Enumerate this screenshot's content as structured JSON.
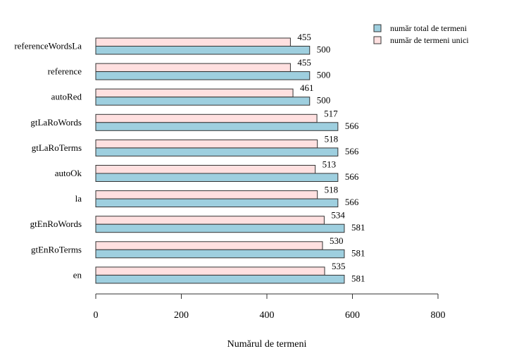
{
  "colors": {
    "total": "#9ecfdf",
    "unique": "#ffe0e0",
    "stroke": "#333333"
  },
  "chart_data": {
    "type": "bar",
    "orientation": "horizontal",
    "xlabel": "Numărul de termeni",
    "xlim": [
      0,
      800
    ],
    "xticks": [
      0,
      200,
      400,
      600,
      800
    ],
    "grid": false,
    "legend_position": "top-right",
    "categories": [
      "referenceWordsLa",
      "reference",
      "autoRed",
      "gtLaRoWords",
      "gtLaRoTerms",
      "autoOk",
      "la",
      "gtEnRoWords",
      "gtEnRoTerms",
      "en"
    ],
    "series": [
      {
        "name": "număr total de termeni",
        "values": [
          500,
          500,
          500,
          566,
          566,
          566,
          566,
          581,
          581,
          581
        ]
      },
      {
        "name": "număr de termeni unici",
        "values": [
          455,
          455,
          461,
          517,
          518,
          513,
          518,
          534,
          530,
          535
        ]
      }
    ]
  }
}
